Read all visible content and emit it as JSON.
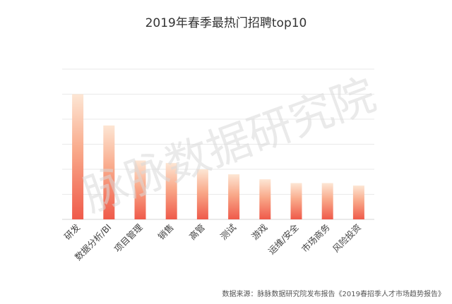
{
  "chart_data": {
    "type": "bar",
    "title": "2019年春季最热门招聘top10",
    "categories": [
      "研发",
      "数据分析/BI",
      "项目管理",
      "销售",
      "高管",
      "测试",
      "游戏",
      "运维/安全",
      "市场商务",
      "风险投资"
    ],
    "values": [
      100,
      75,
      47,
      45,
      40,
      36,
      32,
      29,
      29,
      27
    ],
    "ylim": [
      0,
      120
    ],
    "grid": true,
    "legend": "none",
    "xlabel": "",
    "ylabel": ""
  },
  "watermark": "脉脉数据研究院",
  "source_note": "数据来源：脉脉数据研究院发布报告《2019春招季人才市场趋势报告》",
  "colors": {
    "bar_top": "#fde6d4",
    "bar_mid": "#f9a98a",
    "bar_bottom": "#ef5a4a",
    "grid": "#e9e9e9",
    "text": "#333333"
  }
}
